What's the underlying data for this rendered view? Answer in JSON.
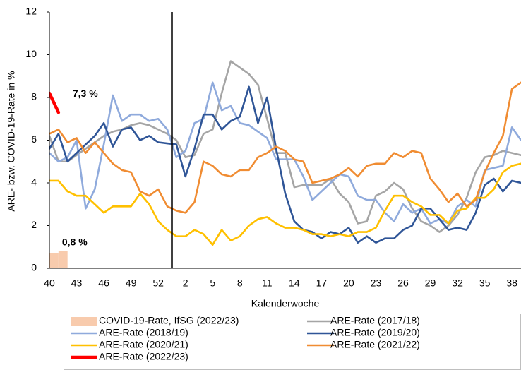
{
  "chart_data": {
    "type": "line",
    "x_label": "Kalenderwoche",
    "y_label": "ARE- bzw. COVID-19-Rate in %",
    "categories": [
      40,
      null,
      null,
      43,
      null,
      null,
      46,
      null,
      null,
      49,
      null,
      null,
      52,
      null,
      null,
      2,
      null,
      null,
      5,
      null,
      null,
      8,
      null,
      null,
      11,
      null,
      null,
      14,
      null,
      null,
      17,
      null,
      null,
      20,
      null,
      null,
      23,
      null,
      null,
      26,
      null,
      null,
      29,
      null,
      null,
      32,
      null,
      null,
      35,
      null,
      null,
      38,
      null
    ],
    "ylim": [
      0,
      12
    ],
    "yticks": [
      0,
      2,
      4,
      6,
      8,
      10,
      12
    ],
    "grid": false,
    "legend": "bottom",
    "series": [
      {
        "name": "COVID-19-Rate, IfSG (2022/23)",
        "type": "bar",
        "color": "#f8cbad",
        "values": [
          0.7,
          0.8,
          null,
          null,
          null,
          null,
          null,
          null,
          null,
          null,
          null,
          null,
          null,
          null,
          null,
          null,
          null,
          null,
          null,
          null,
          null,
          null,
          null,
          null,
          null,
          null,
          null,
          null,
          null,
          null,
          null,
          null,
          null,
          null,
          null,
          null,
          null,
          null,
          null,
          null,
          null,
          null,
          null,
          null,
          null,
          null,
          null,
          null,
          null,
          null,
          null,
          null,
          null
        ],
        "value_labels": [
          null,
          "0,8 %",
          null,
          null,
          null,
          null,
          null,
          null,
          null,
          null,
          null,
          null,
          null,
          null,
          null,
          null,
          null,
          null,
          null,
          null,
          null,
          null,
          null,
          null,
          null,
          null,
          null,
          null,
          null,
          null,
          null,
          null,
          null,
          null,
          null,
          null,
          null,
          null,
          null,
          null,
          null,
          null,
          null,
          null,
          null,
          null,
          null,
          null,
          null,
          null,
          null,
          null,
          null
        ]
      },
      {
        "name": "ARE-Rate (2017/18)",
        "type": "line",
        "color": "#a5a5a5",
        "values": [
          6.2,
          5.0,
          5.0,
          5.3,
          5.6,
          5.9,
          6.2,
          6.4,
          6.5,
          6.7,
          6.8,
          6.7,
          6.5,
          6.3,
          6.0,
          5.2,
          5.3,
          6.3,
          6.5,
          8.2,
          9.7,
          9.4,
          9.1,
          8.6,
          7.0,
          5.4,
          5.4,
          3.8,
          3.9,
          3.9,
          3.9,
          4.2,
          3.5,
          3.1,
          2.1,
          2.2,
          3.4,
          3.6,
          4.0,
          3.7,
          2.8,
          2.2,
          2.0,
          1.7,
          2.0,
          2.5,
          3.3,
          4.5,
          5.2,
          5.3,
          5.5,
          5.4,
          5.3
        ]
      },
      {
        "name": "ARE-Rate (2018/19)",
        "type": "line",
        "color": "#8faadc",
        "values": [
          5.4,
          5.0,
          5.2,
          6.0,
          2.8,
          3.7,
          5.8,
          8.1,
          6.9,
          7.2,
          7.2,
          6.9,
          7.0,
          6.5,
          5.2,
          5.5,
          6.8,
          7.0,
          8.7,
          7.4,
          7.6,
          6.8,
          6.7,
          6.4,
          6.1,
          5.1,
          5.1,
          5.1,
          4.3,
          3.2,
          3.6,
          4.0,
          4.4,
          4.3,
          3.4,
          3.2,
          3.2,
          2.6,
          2.2,
          3.0,
          2.6,
          2.8,
          2.1,
          2.3,
          2.1,
          2.9,
          3.2,
          2.9,
          4.6,
          4.7,
          4.8,
          6.6,
          6.0
        ]
      },
      {
        "name": "ARE-Rate (2019/20)",
        "type": "line",
        "color": "#2f5597",
        "values": [
          5.6,
          6.3,
          5.0,
          5.4,
          5.8,
          6.2,
          6.8,
          5.7,
          6.5,
          6.6,
          6.0,
          6.2,
          5.9,
          5.85,
          5.8,
          4.3,
          5.6,
          7.2,
          7.2,
          6.5,
          6.9,
          7.1,
          8.5,
          6.8,
          8.0,
          5.6,
          3.5,
          2.2,
          1.8,
          1.7,
          1.4,
          1.7,
          1.6,
          1.9,
          1.2,
          1.5,
          1.2,
          1.4,
          1.4,
          1.8,
          2.0,
          2.8,
          2.8,
          2.3,
          1.8,
          1.9,
          1.8,
          2.6,
          3.9,
          4.2,
          3.6,
          4.1,
          4.0
        ]
      },
      {
        "name": "ARE-Rate (2020/21)",
        "type": "line",
        "color": "#ffc000",
        "values": [
          4.1,
          4.1,
          3.6,
          3.4,
          3.4,
          3.0,
          2.6,
          2.9,
          2.9,
          2.9,
          3.5,
          3.0,
          2.2,
          1.8,
          1.5,
          1.5,
          1.8,
          1.6,
          1.1,
          1.8,
          1.3,
          1.5,
          2.0,
          2.3,
          2.4,
          2.1,
          1.9,
          1.9,
          1.8,
          1.6,
          1.6,
          1.5,
          1.6,
          1.5,
          1.7,
          1.7,
          1.9,
          2.7,
          3.4,
          3.4,
          3.1,
          2.9,
          2.5,
          2.5,
          2.1,
          2.7,
          2.8,
          3.3,
          3.3,
          3.7,
          4.5,
          4.8,
          4.9
        ]
      },
      {
        "name": "ARE-Rate (2021/22)",
        "type": "line",
        "color": "#f08c32",
        "values": [
          6.3,
          6.5,
          5.9,
          6.1,
          5.4,
          5.9,
          5.4,
          4.9,
          4.6,
          4.5,
          3.6,
          3.4,
          3.7,
          2.9,
          2.7,
          2.6,
          3.1,
          5.0,
          4.8,
          4.4,
          4.3,
          4.6,
          4.6,
          5.2,
          5.4,
          5.7,
          5.5,
          5.1,
          5.0,
          4.0,
          4.1,
          4.2,
          4.4,
          4.7,
          4.3,
          4.8,
          4.9,
          4.9,
          5.4,
          5.2,
          5.5,
          5.4,
          4.2,
          3.7,
          3.1,
          3.5,
          2.9,
          3.2,
          4.5,
          5.4,
          6.2,
          8.4,
          8.7
        ]
      },
      {
        "name": "ARE-Rate (2022/23)",
        "type": "line",
        "color": "#ff0000",
        "values": [
          8.2,
          7.3,
          null,
          null,
          null,
          null,
          null,
          null,
          null,
          null,
          null,
          null,
          null,
          null,
          null,
          null,
          null,
          null,
          null,
          null,
          null,
          null,
          null,
          null,
          null,
          null,
          null,
          null,
          null,
          null,
          null,
          null,
          null,
          null,
          null,
          null,
          null,
          null,
          null,
          null,
          null,
          null,
          null,
          null,
          null,
          null,
          null,
          null,
          null,
          null,
          null,
          null,
          null
        ],
        "value_labels": [
          null,
          "7,3 %",
          null,
          null,
          null,
          null,
          null,
          null,
          null,
          null,
          null,
          null,
          null,
          null,
          null,
          null,
          null,
          null,
          null,
          null,
          null,
          null,
          null,
          null,
          null,
          null,
          null,
          null,
          null,
          null,
          null,
          null,
          null,
          null,
          null,
          null,
          null,
          null,
          null,
          null,
          null,
          null,
          null,
          null,
          null,
          null,
          null,
          null,
          null,
          null,
          null,
          null,
          null
        ]
      }
    ]
  }
}
